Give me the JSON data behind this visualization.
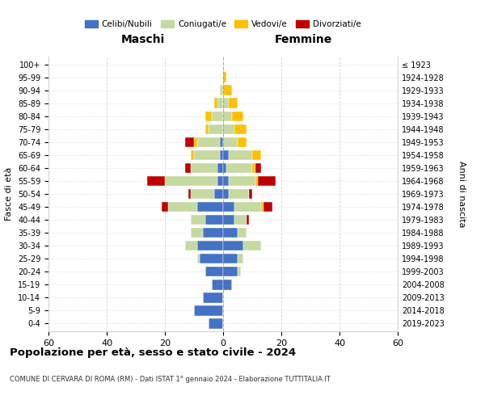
{
  "age_groups": [
    "0-4",
    "5-9",
    "10-14",
    "15-19",
    "20-24",
    "25-29",
    "30-34",
    "35-39",
    "40-44",
    "45-49",
    "50-54",
    "55-59",
    "60-64",
    "65-69",
    "70-74",
    "75-79",
    "80-84",
    "85-89",
    "90-94",
    "95-99",
    "100+"
  ],
  "birth_years": [
    "2019-2023",
    "2014-2018",
    "2009-2013",
    "2004-2008",
    "1999-2003",
    "1994-1998",
    "1989-1993",
    "1984-1988",
    "1979-1983",
    "1974-1978",
    "1969-1973",
    "1964-1968",
    "1959-1963",
    "1954-1958",
    "1949-1953",
    "1944-1948",
    "1939-1943",
    "1934-1938",
    "1929-1933",
    "1924-1928",
    "≤ 1923"
  ],
  "males": {
    "celibi": [
      5,
      10,
      7,
      4,
      6,
      8,
      9,
      7,
      6,
      9,
      3,
      2,
      2,
      1,
      1,
      0,
      0,
      0,
      0,
      0,
      0
    ],
    "coniugati": [
      0,
      0,
      0,
      0,
      0,
      1,
      4,
      4,
      5,
      10,
      8,
      18,
      9,
      9,
      8,
      5,
      4,
      2,
      1,
      0,
      0
    ],
    "vedovi": [
      0,
      0,
      0,
      0,
      0,
      0,
      0,
      0,
      0,
      0,
      0,
      0,
      0,
      1,
      1,
      1,
      2,
      1,
      0,
      0,
      0
    ],
    "divorziati": [
      0,
      0,
      0,
      0,
      0,
      0,
      0,
      0,
      0,
      2,
      1,
      6,
      2,
      0,
      3,
      0,
      0,
      0,
      0,
      0,
      0
    ]
  },
  "females": {
    "nubili": [
      0,
      0,
      0,
      3,
      5,
      5,
      7,
      5,
      4,
      4,
      2,
      2,
      1,
      2,
      0,
      0,
      0,
      0,
      0,
      0,
      0
    ],
    "coniugate": [
      0,
      0,
      0,
      0,
      1,
      2,
      6,
      3,
      4,
      9,
      7,
      9,
      9,
      8,
      5,
      4,
      3,
      2,
      0,
      0,
      0
    ],
    "vedove": [
      0,
      0,
      0,
      0,
      0,
      0,
      0,
      0,
      0,
      1,
      0,
      1,
      1,
      3,
      3,
      4,
      4,
      3,
      3,
      1,
      0
    ],
    "divorziate": [
      0,
      0,
      0,
      0,
      0,
      0,
      0,
      0,
      1,
      3,
      1,
      6,
      2,
      0,
      0,
      0,
      0,
      0,
      0,
      0,
      0
    ]
  },
  "colors": {
    "celibi": "#4472c4",
    "coniugati": "#c5d9a0",
    "vedovi": "#ffc000",
    "divorziati": "#c00000"
  },
  "legend_labels": [
    "Celibi/Nubili",
    "Coniugati/e",
    "Vedovi/e",
    "Divorziati/e"
  ],
  "title": "Popolazione per età, sesso e stato civile - 2024",
  "subtitle": "COMUNE DI CERVARA DI ROMA (RM) - Dati ISTAT 1° gennaio 2024 - Elaborazione TUTTITALIA.IT",
  "xlabel_left": "Maschi",
  "xlabel_right": "Femmine",
  "ylabel_left": "Fasce di età",
  "ylabel_right": "Anni di nascita",
  "xlim": 60,
  "xtick_labels": [
    "60",
    "40",
    "20",
    "0",
    "20",
    "40",
    "60"
  ]
}
